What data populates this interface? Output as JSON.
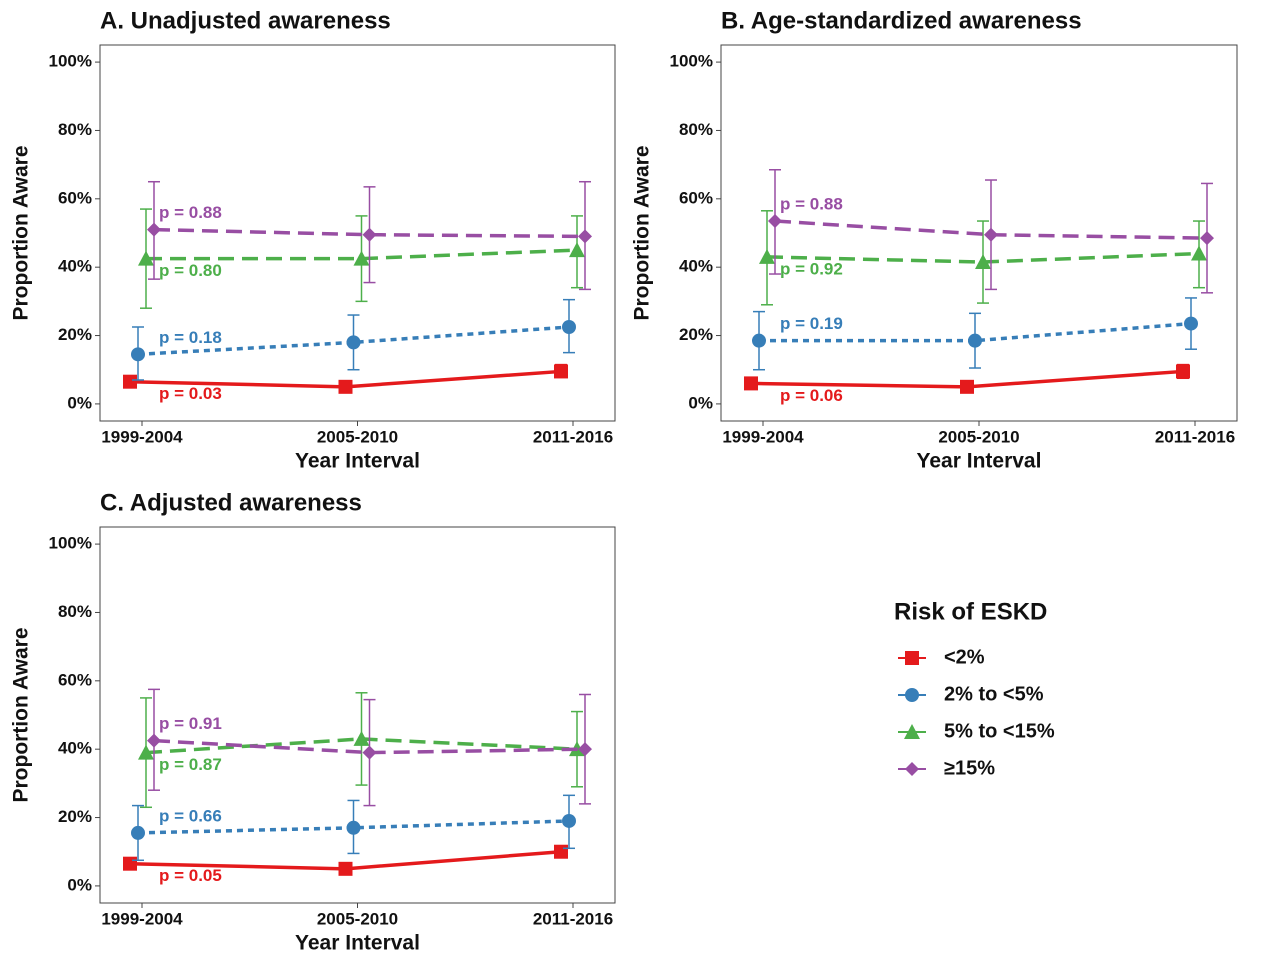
{
  "legend_title": "Risk of ESKD",
  "chart_data": [
    {
      "type": "line",
      "title": "A. Unadjusted awareness",
      "x_label": "Year Interval",
      "y_label": "Proportion Aware",
      "categories": [
        "1999-2004",
        "2005-2010",
        "2011-2016"
      ],
      "ylim": [
        -5,
        105
      ],
      "yticks": [
        {
          "value": 0,
          "label": "0%"
        },
        {
          "value": 20,
          "label": "20%"
        },
        {
          "value": 40,
          "label": "40%"
        },
        {
          "value": 60,
          "label": "60%"
        },
        {
          "value": 80,
          "label": "80%"
        },
        {
          "value": 100,
          "label": "100%"
        }
      ],
      "series": [
        {
          "name": "<2%",
          "color": "#e41a1c",
          "marker": "square",
          "line_style": "solid",
          "values": [
            6.5,
            5,
            9.5
          ],
          "lower": [
            5.5,
            4,
            8
          ],
          "upper": [
            7.5,
            6,
            11.5
          ],
          "annotation": "p = 0.03"
        },
        {
          "name": "2% to <5%",
          "color": "#377eb8",
          "marker": "circle",
          "line_style": "dotted",
          "values": [
            14.5,
            18,
            22.5
          ],
          "lower": [
            7,
            10,
            15
          ],
          "upper": [
            22.5,
            26,
            30.5
          ],
          "annotation": "p = 0.18"
        },
        {
          "name": "5% to <15%",
          "color": "#4daf4a",
          "marker": "triangle",
          "line_style": "dashed",
          "values": [
            42.5,
            42.5,
            45
          ],
          "lower": [
            28,
            30,
            34
          ],
          "upper": [
            57,
            55,
            55
          ],
          "annotation": "p = 0.80"
        },
        {
          "name": "≥15%",
          "color": "#984ea3",
          "marker": "diamond",
          "line_style": "dashed",
          "values": [
            51,
            49.5,
            49
          ],
          "lower": [
            36.5,
            35.5,
            33.5
          ],
          "upper": [
            65,
            63.5,
            65
          ],
          "annotation": "p = 0.88"
        }
      ]
    },
    {
      "type": "line",
      "title": "B. Age-standardized awareness",
      "x_label": "Year Interval",
      "y_label": "Proportion Aware",
      "categories": [
        "1999-2004",
        "2005-2010",
        "2011-2016"
      ],
      "ylim": [
        -5,
        105
      ],
      "yticks": [
        {
          "value": 0,
          "label": "0%"
        },
        {
          "value": 20,
          "label": "20%"
        },
        {
          "value": 40,
          "label": "40%"
        },
        {
          "value": 60,
          "label": "60%"
        },
        {
          "value": 80,
          "label": "80%"
        },
        {
          "value": 100,
          "label": "100%"
        }
      ],
      "series": [
        {
          "name": "<2%",
          "color": "#e41a1c",
          "marker": "square",
          "line_style": "solid",
          "values": [
            6,
            5,
            9.5
          ],
          "lower": [
            4.5,
            3.5,
            7.5
          ],
          "upper": [
            7.5,
            6.5,
            11.5
          ],
          "annotation": "p = 0.06"
        },
        {
          "name": "2% to <5%",
          "color": "#377eb8",
          "marker": "circle",
          "line_style": "dotted",
          "values": [
            18.5,
            18.5,
            23.5
          ],
          "lower": [
            10,
            10.5,
            16
          ],
          "upper": [
            27,
            26.5,
            31
          ],
          "annotation": "p = 0.19"
        },
        {
          "name": "5% to <15%",
          "color": "#4daf4a",
          "marker": "triangle",
          "line_style": "dashed",
          "values": [
            43,
            41.5,
            44
          ],
          "lower": [
            29,
            29.5,
            34
          ],
          "upper": [
            56.5,
            53.5,
            53.5
          ],
          "annotation": "p = 0.92"
        },
        {
          "name": "≥15%",
          "color": "#984ea3",
          "marker": "diamond",
          "line_style": "dashed",
          "values": [
            53.5,
            49.5,
            48.5
          ],
          "lower": [
            38,
            33.5,
            32.5
          ],
          "upper": [
            68.5,
            65.5,
            64.5
          ],
          "annotation": "p = 0.88"
        }
      ]
    },
    {
      "type": "line",
      "title": "C. Adjusted awareness",
      "x_label": "Year Interval",
      "y_label": "Proportion Aware",
      "categories": [
        "1999-2004",
        "2005-2010",
        "2011-2016"
      ],
      "ylim": [
        -5,
        105
      ],
      "yticks": [
        {
          "value": 0,
          "label": "0%"
        },
        {
          "value": 20,
          "label": "20%"
        },
        {
          "value": 40,
          "label": "40%"
        },
        {
          "value": 60,
          "label": "60%"
        },
        {
          "value": 80,
          "label": "80%"
        },
        {
          "value": 100,
          "label": "100%"
        }
      ],
      "series": [
        {
          "name": "<2%",
          "color": "#e41a1c",
          "marker": "square",
          "line_style": "solid",
          "values": [
            6.5,
            5,
            10
          ],
          "lower": [
            5,
            4,
            8.5
          ],
          "upper": [
            8,
            6.5,
            11.5
          ],
          "annotation": "p = 0.05"
        },
        {
          "name": "2% to <5%",
          "color": "#377eb8",
          "marker": "circle",
          "line_style": "dotted",
          "values": [
            15.5,
            17,
            19
          ],
          "lower": [
            7.5,
            9.5,
            11
          ],
          "upper": [
            23.5,
            25,
            26.5
          ],
          "annotation": "p = 0.66"
        },
        {
          "name": "5% to <15%",
          "color": "#4daf4a",
          "marker": "triangle",
          "line_style": "dashed",
          "values": [
            39,
            43,
            40
          ],
          "lower": [
            23,
            29.5,
            29
          ],
          "upper": [
            55,
            56.5,
            51
          ],
          "annotation": "p = 0.87"
        },
        {
          "name": "≥15%",
          "color": "#984ea3",
          "marker": "diamond",
          "line_style": "dashed",
          "values": [
            42.5,
            39,
            40
          ],
          "lower": [
            28,
            23.5,
            24
          ],
          "upper": [
            57.5,
            54.5,
            56
          ],
          "annotation": "p = 0.91"
        }
      ]
    }
  ]
}
